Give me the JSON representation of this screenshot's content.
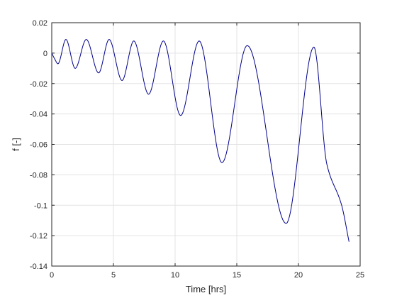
{
  "chart_data": {
    "type": "line",
    "title": "",
    "xlabel": "Time [hrs]",
    "ylabel": "f [-]",
    "xlim": [
      0,
      25
    ],
    "ylim": [
      -0.14,
      0.02
    ],
    "xticks": [
      0,
      5,
      10,
      15,
      20,
      25
    ],
    "xtick_labels": [
      "0",
      "5",
      "10",
      "15",
      "20",
      "25"
    ],
    "yticks": [
      -0.14,
      -0.12,
      -0.1,
      -0.08,
      -0.06,
      -0.04,
      -0.02,
      0,
      0.02
    ],
    "ytick_labels": [
      "-0.14",
      "-0.12",
      "-0.1",
      "-0.08",
      "-0.06",
      "-0.04",
      "-0.02",
      "0",
      "0.02"
    ],
    "grid": true,
    "legend": "none",
    "series": [
      {
        "color": "#00008b",
        "x": [
          0,
          0.25,
          0.5,
          1.15,
          1.9,
          2.8,
          3.8,
          4.65,
          5.7,
          6.65,
          7.85,
          9.05,
          10.45,
          11.95,
          13.8,
          15.85,
          19.0,
          21.25,
          22.3,
          23.5,
          24.1
        ],
        "y": [
          0.0,
          -0.004,
          -0.007,
          0.009,
          -0.01,
          0.009,
          -0.013,
          0.009,
          -0.018,
          0.008,
          -0.027,
          0.008,
          -0.041,
          0.008,
          -0.072,
          0.005,
          -0.112,
          0.004,
          -0.073,
          -0.1,
          -0.124
        ]
      }
    ]
  }
}
